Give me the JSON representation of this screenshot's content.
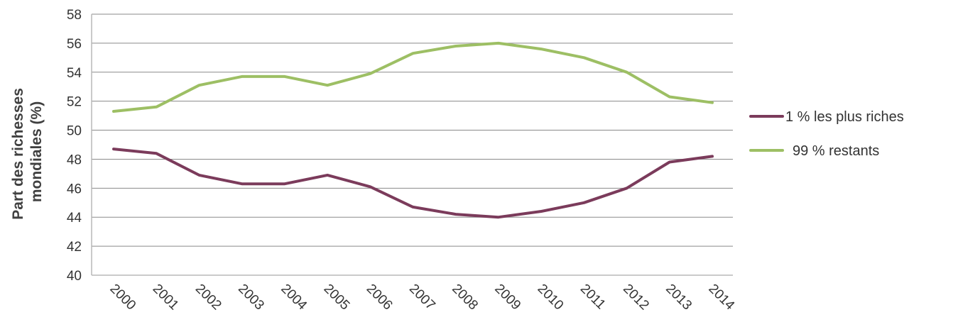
{
  "chart_data": {
    "type": "line",
    "x": [
      "2000",
      "2001",
      "2002",
      "2003",
      "2004",
      "2005",
      "2006",
      "2007",
      "2008",
      "2009",
      "2010",
      "2011",
      "2012",
      "2013",
      "2014"
    ],
    "series": [
      {
        "name": "1 % les plus riches",
        "color": "#7b3b5b",
        "values": [
          48.7,
          48.4,
          46.9,
          46.3,
          46.3,
          46.9,
          46.1,
          44.7,
          44.2,
          44.0,
          44.4,
          45.0,
          46.0,
          47.8,
          48.2
        ]
      },
      {
        "name": "99 % restants",
        "color": "#9dbf64",
        "values": [
          51.3,
          51.6,
          53.1,
          53.7,
          53.7,
          53.1,
          53.9,
          55.3,
          55.8,
          56.0,
          55.6,
          55.0,
          54.0,
          52.3,
          51.9
        ]
      }
    ],
    "ylabel": "Part des richesses mondiales (%)",
    "ylabel_lines": [
      "Part des richesses",
      "mondiales (%)"
    ],
    "xlabel": "",
    "ylim": [
      40,
      58
    ],
    "yticks": [
      "40",
      "42",
      "44",
      "46",
      "48",
      "50",
      "52",
      "54",
      "56",
      "58"
    ],
    "grid": true,
    "legend_position": "right"
  }
}
